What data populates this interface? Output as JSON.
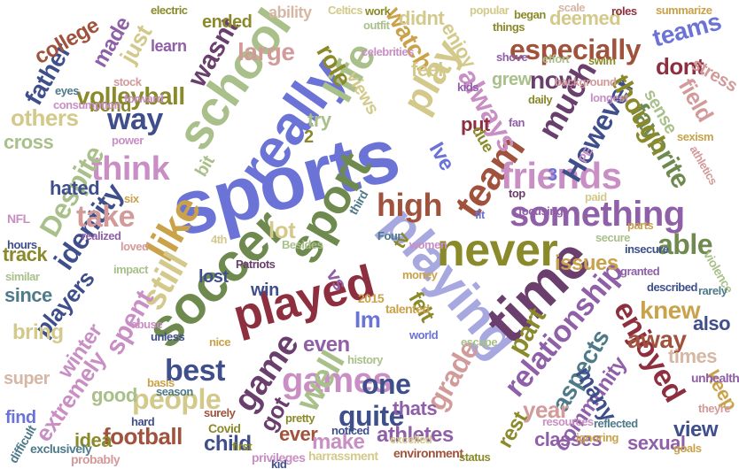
{
  "palette": {
    "blue": "#6b73d6",
    "purple": "#8f5fa8",
    "pink": "#c98fc4",
    "rose": "#d39a9a",
    "brown": "#a0523d",
    "darkred": "#8e2f3f",
    "olive": "#8a8a2a",
    "khaki": "#d3c98a",
    "sage": "#a9c08a",
    "green": "#6f8a4e",
    "teal": "#4e7a8a",
    "navy": "#3f4f8c",
    "plum": "#6a3f6e",
    "gold": "#c9a24a",
    "lavender": "#a8a8e0",
    "tan": "#d6b7a3"
  },
  "words": [
    {
      "text": "sports",
      "color": "blue"
    },
    {
      "text": "playing",
      "color": "lavender"
    },
    {
      "text": "soccer",
      "color": "green"
    },
    {
      "text": "time",
      "color": "plum"
    },
    {
      "text": "really",
      "color": "blue"
    },
    {
      "text": "school",
      "color": "sage"
    },
    {
      "text": "played",
      "color": "darkred"
    },
    {
      "text": "sport",
      "color": "green"
    },
    {
      "text": "never",
      "color": "olive"
    },
    {
      "text": "something",
      "color": "purple"
    },
    {
      "text": "like",
      "color": "gold"
    },
    {
      "text": "life",
      "color": "sage"
    },
    {
      "text": "team",
      "color": "brown"
    },
    {
      "text": "friends",
      "color": "pink"
    },
    {
      "text": "game",
      "color": "plum"
    },
    {
      "text": "games",
      "color": "pink"
    },
    {
      "text": "relationship",
      "color": "purple"
    },
    {
      "text": "still",
      "color": "khaki"
    },
    {
      "text": "think",
      "color": "pink"
    },
    {
      "text": "high",
      "color": "brown"
    },
    {
      "text": "play",
      "color": "khaki"
    },
    {
      "text": "much",
      "color": "plum"
    },
    {
      "text": "However",
      "color": "navy"
    },
    {
      "text": "best",
      "color": "navy"
    },
    {
      "text": "well",
      "color": "sage"
    },
    {
      "text": "enjoyed",
      "color": "darkred"
    },
    {
      "text": "identity",
      "color": "navy"
    },
    {
      "text": "always",
      "color": "pink"
    },
    {
      "text": "especially",
      "color": "brown"
    },
    {
      "text": "Despite",
      "color": "sage"
    },
    {
      "text": "favorite",
      "color": "green"
    },
    {
      "text": "able",
      "color": "green"
    },
    {
      "text": "take",
      "color": "rose"
    },
    {
      "text": "way",
      "color": "navy"
    },
    {
      "text": "volleyball",
      "color": "olive"
    },
    {
      "text": "people",
      "color": "khaki"
    },
    {
      "text": "quite",
      "color": "navy"
    },
    {
      "text": "grade",
      "color": "rose"
    },
    {
      "text": "one",
      "color": "navy"
    },
    {
      "text": "part",
      "color": "olive"
    },
    {
      "text": "aspects",
      "color": "teal"
    },
    {
      "text": "community",
      "color": "purple"
    },
    {
      "text": "though",
      "color": "olive"
    },
    {
      "text": "teams",
      "color": "blue"
    },
    {
      "text": "knew",
      "color": "gold"
    },
    {
      "text": "away",
      "color": "brown"
    },
    {
      "text": "spent",
      "color": "pink"
    },
    {
      "text": "extremely",
      "color": "pink"
    },
    {
      "text": "football",
      "color": "brown"
    },
    {
      "text": "players",
      "color": "navy"
    },
    {
      "text": "watch",
      "color": "gold"
    },
    {
      "text": "father",
      "color": "navy"
    },
    {
      "text": "wasnt",
      "color": "plum"
    },
    {
      "text": "large",
      "color": "rose"
    },
    {
      "text": "role",
      "color": "olive"
    },
    {
      "text": "lot",
      "color": "khaki"
    },
    {
      "text": "Im",
      "color": "blue"
    },
    {
      "text": "now",
      "color": "plum"
    },
    {
      "text": "others",
      "color": "khaki"
    },
    {
      "text": "many",
      "color": "navy"
    },
    {
      "text": "even",
      "color": "purple"
    },
    {
      "text": "felt",
      "color": "olive"
    },
    {
      "text": "field",
      "color": "rose"
    },
    {
      "text": "dont",
      "color": "darkred"
    },
    {
      "text": "just",
      "color": "khaki"
    },
    {
      "text": "made",
      "color": "purple"
    },
    {
      "text": "college",
      "color": "brown"
    },
    {
      "text": "issues",
      "color": "gold"
    },
    {
      "text": "got",
      "color": "plum"
    },
    {
      "text": "idea",
      "color": "olive"
    },
    {
      "text": "child",
      "color": "navy"
    },
    {
      "text": "athletes",
      "color": "purple"
    },
    {
      "text": "rest",
      "color": "olive"
    },
    {
      "text": "classes",
      "color": "purple"
    },
    {
      "text": "year",
      "color": "rose"
    },
    {
      "text": "view",
      "color": "navy"
    },
    {
      "text": "sexual",
      "color": "purple"
    },
    {
      "text": "keep",
      "color": "gold"
    },
    {
      "text": "times",
      "color": "tan"
    },
    {
      "text": "also",
      "color": "navy"
    },
    {
      "text": "ever",
      "color": "brown"
    },
    {
      "text": "make",
      "color": "pink"
    },
    {
      "text": "thats",
      "color": "purple"
    },
    {
      "text": "good",
      "color": "sage"
    },
    {
      "text": "winter",
      "color": "pink"
    },
    {
      "text": "bring",
      "color": "khaki"
    },
    {
      "text": "since",
      "color": "teal"
    },
    {
      "text": "track",
      "color": "olive"
    },
    {
      "text": "hated",
      "color": "navy"
    },
    {
      "text": "cross",
      "color": "sage"
    },
    {
      "text": "bond",
      "color": "olive"
    },
    {
      "text": "views",
      "color": "khaki"
    },
    {
      "text": "enjoy",
      "color": "khaki"
    },
    {
      "text": "didnt",
      "color": "khaki"
    },
    {
      "text": "feel",
      "color": "khaki"
    },
    {
      "text": "grew",
      "color": "sage"
    },
    {
      "text": "put",
      "color": "darkred"
    },
    {
      "text": "Ive",
      "color": "blue"
    },
    {
      "text": "try",
      "color": "sage"
    },
    {
      "text": "win",
      "color": "navy"
    },
    {
      "text": "lost",
      "color": "navy"
    },
    {
      "text": "vs",
      "color": "purple"
    },
    {
      "text": "tv",
      "color": "olive"
    },
    {
      "text": "sense",
      "color": "sage"
    },
    {
      "text": "stress",
      "color": "rose"
    },
    {
      "text": "deemed",
      "color": "khaki"
    },
    {
      "text": "ended",
      "color": "olive"
    },
    {
      "text": "learn",
      "color": "purple"
    },
    {
      "text": "ability",
      "color": "tan"
    },
    {
      "text": "find",
      "color": "blue"
    },
    {
      "text": "super",
      "color": "tan"
    },
    {
      "text": "2",
      "color": "olive"
    },
    {
      "text": "3",
      "color": "blue"
    },
    {
      "text": "bit",
      "color": "sage"
    },
    {
      "text": "due",
      "color": "olive"
    },
    {
      "text": "third",
      "color": "teal"
    },
    {
      "text": "2015",
      "color": "gold"
    },
    {
      "text": "talented",
      "color": "gold"
    },
    {
      "text": "unhealthy",
      "color": "purple"
    },
    {
      "text": "violence",
      "color": "sage"
    },
    {
      "text": "environment",
      "color": "brown"
    },
    {
      "text": "privileges",
      "color": "pink"
    },
    {
      "text": "exclusively",
      "color": "teal"
    },
    {
      "text": "harrassment",
      "color": "khaki"
    },
    {
      "text": "probably",
      "color": "rose"
    },
    {
      "text": "difficult",
      "color": "teal"
    },
    {
      "text": "PE",
      "color": "pink"
    },
    {
      "text": "NFL",
      "color": "pink"
    },
    {
      "text": "Covid",
      "color": "olive"
    },
    {
      "text": "Celtics",
      "color": "khaki"
    },
    {
      "text": "electric",
      "color": "olive"
    },
    {
      "text": "popular",
      "color": "khaki"
    },
    {
      "text": "summarize",
      "color": "gold"
    },
    {
      "text": "athletics",
      "color": "rose"
    },
    {
      "text": "focusing",
      "color": "purple"
    },
    {
      "text": "escape",
      "color": "sage"
    },
    {
      "text": "forward",
      "color": "pink"
    },
    {
      "text": "consumption",
      "color": "pink"
    },
    {
      "text": "eyes",
      "color": "teal"
    },
    {
      "text": "six",
      "color": "gold"
    },
    {
      "text": "hours",
      "color": "navy"
    },
    {
      "text": "similar",
      "color": "sage"
    },
    {
      "text": "realized",
      "color": "purple"
    },
    {
      "text": "loved",
      "color": "rose"
    },
    {
      "text": "season",
      "color": "teal"
    },
    {
      "text": "surely",
      "color": "brown"
    },
    {
      "text": "pretty",
      "color": "olive"
    },
    {
      "text": "secure",
      "color": "sage"
    },
    {
      "text": "insecure",
      "color": "navy"
    },
    {
      "text": "parts",
      "color": "gold"
    },
    {
      "text": "noticed",
      "color": "navy"
    },
    {
      "text": "nice",
      "color": "gold"
    },
    {
      "text": "abuse",
      "color": "pink"
    },
    {
      "text": "money",
      "color": "gold"
    },
    {
      "text": "described",
      "color": "navy"
    },
    {
      "text": "rarely",
      "color": "teal"
    },
    {
      "text": "basis",
      "color": "gold"
    },
    {
      "text": "impact",
      "color": "sage"
    },
    {
      "text": "hard",
      "color": "navy"
    },
    {
      "text": "first",
      "color": "olive"
    },
    {
      "text": "kid",
      "color": "navy"
    },
    {
      "text": "status",
      "color": "olive"
    },
    {
      "text": "excelled",
      "color": "khaki"
    },
    {
      "text": "ignoring",
      "color": "gold"
    },
    {
      "text": "goals",
      "color": "gold"
    },
    {
      "text": "work",
      "color": "olive"
    },
    {
      "text": "outfit",
      "color": "sage"
    },
    {
      "text": "celebrities",
      "color": "pink"
    },
    {
      "text": "began",
      "color": "olive"
    },
    {
      "text": "roles",
      "color": "darkred"
    },
    {
      "text": "theyre",
      "color": "rose"
    },
    {
      "text": "reflected",
      "color": "teal"
    },
    {
      "text": "granted",
      "color": "purple"
    },
    {
      "text": "Four",
      "color": "teal"
    },
    {
      "text": "Patriots",
      "color": "plum"
    },
    {
      "text": "4th",
      "color": "khaki"
    },
    {
      "text": "stock",
      "color": "rose"
    },
    {
      "text": "power",
      "color": "pink"
    },
    {
      "text": "daily",
      "color": "olive"
    },
    {
      "text": "scale",
      "color": "tan"
    },
    {
      "text": "resources",
      "color": "pink"
    },
    {
      "text": "sexism",
      "color": "gold"
    },
    {
      "text": "unless",
      "color": "navy"
    },
    {
      "text": "Besides",
      "color": "sage"
    },
    {
      "text": "fan",
      "color": "purple"
    },
    {
      "text": "paid",
      "color": "khaki"
    },
    {
      "text": "shove",
      "color": "purple"
    },
    {
      "text": "swim",
      "color": "olive"
    },
    {
      "text": "top",
      "color": "plum"
    },
    {
      "text": "fit",
      "color": "blue"
    },
    {
      "text": "kids",
      "color": "purple"
    },
    {
      "text": "effort",
      "color": "sage"
    },
    {
      "text": "longest",
      "color": "pink"
    },
    {
      "text": "background",
      "color": "rose"
    },
    {
      "text": "things",
      "color": "olive"
    },
    {
      "text": "women",
      "color": "pink"
    },
    {
      "text": "world",
      "color": "blue"
    },
    {
      "text": "history",
      "color": "sage"
    }
  ]
}
